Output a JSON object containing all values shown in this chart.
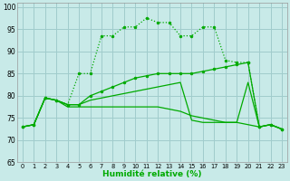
{
  "background_color": "#c8eae8",
  "grid_color": "#a0cccc",
  "line_color": "#00aa00",
  "ylim_min": 65,
  "ylim_max": 101,
  "xlim_min": -0.5,
  "xlim_max": 23.5,
  "yticks": [
    65,
    70,
    75,
    80,
    85,
    90,
    95,
    100
  ],
  "xticks": [
    0,
    1,
    2,
    3,
    4,
    5,
    6,
    7,
    8,
    9,
    10,
    11,
    12,
    13,
    14,
    15,
    16,
    17,
    18,
    19,
    20,
    21,
    22,
    23
  ],
  "xlabel": "Humidité relative (%)",
  "series": [
    {
      "y": [
        73,
        73.5,
        79.5,
        79,
        78,
        85,
        85,
        93.5,
        93.5,
        95.5,
        95.5,
        97.5,
        96.5,
        96.5,
        93.5,
        93.5,
        95.5,
        95.5,
        88,
        87.5,
        87.5,
        73,
        73.5,
        72.5
      ],
      "linestyle": ":",
      "marker": "o",
      "markersize": 2.0,
      "linewidth": 0.9
    },
    {
      "y": [
        73,
        73.5,
        79.5,
        79,
        78,
        78,
        80,
        81,
        82,
        83,
        84,
        84.5,
        85,
        85,
        85,
        85,
        85.5,
        86,
        86.5,
        87,
        87.5,
        73,
        73.5,
        72.5
      ],
      "linestyle": "-",
      "marker": "o",
      "markersize": 2.0,
      "linewidth": 0.9
    },
    {
      "y": [
        73,
        73.5,
        79.5,
        79,
        78,
        78,
        79,
        79.5,
        80,
        80.5,
        81,
        81.5,
        82,
        82.5,
        83,
        74.5,
        74,
        74,
        74,
        74,
        83,
        73,
        73.5,
        72.5
      ],
      "linestyle": "-",
      "marker": null,
      "markersize": 0,
      "linewidth": 0.9
    },
    {
      "y": [
        73,
        73.5,
        79.5,
        79,
        77.5,
        77.5,
        77.5,
        77.5,
        77.5,
        77.5,
        77.5,
        77.5,
        77.5,
        77,
        76.5,
        75.5,
        75,
        74.5,
        74,
        74,
        73.5,
        73,
        73.5,
        72.5
      ],
      "linestyle": "-",
      "marker": null,
      "markersize": 0,
      "linewidth": 0.9
    }
  ]
}
